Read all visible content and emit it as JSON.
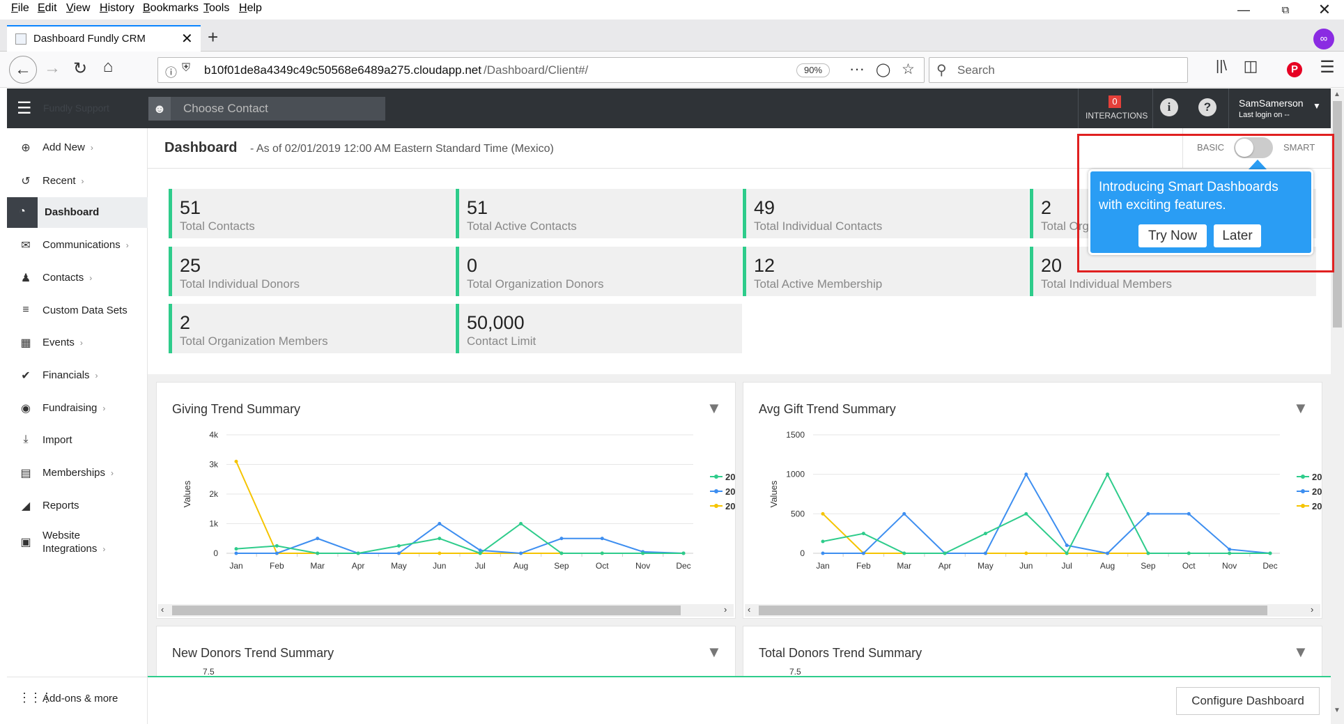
{
  "browser": {
    "menu": [
      "File",
      "Edit",
      "View",
      "History",
      "Bookmarks",
      "Tools",
      "Help"
    ],
    "tab_title": "Dashboard Fundly CRM",
    "url_host": "b10f01de8a4349c49c50568e6489a275.cloudapp.net",
    "url_path": "/Dashboard/Client#/",
    "zoom": "90%",
    "search_placeholder": "Search"
  },
  "header": {
    "brand": "Fundly Support",
    "contact_placeholder": "Choose Contact",
    "interactions_count": "0",
    "interactions_label": "INTERACTIONS",
    "user_name": "SamSamerson",
    "last_login": "Last login on --"
  },
  "sidebar": {
    "items": [
      {
        "label": "Add New",
        "icon": "plus-circle-icon",
        "chevron": true
      },
      {
        "label": "Recent",
        "icon": "history-icon",
        "chevron": true
      },
      {
        "label": "Dashboard",
        "icon": "dashboard-icon",
        "chevron": false,
        "active": true
      },
      {
        "label": "Communications",
        "icon": "envelope-icon",
        "chevron": true
      },
      {
        "label": "Contacts",
        "icon": "user-icon",
        "chevron": true
      },
      {
        "label": "Custom Data Sets",
        "icon": "layers-icon",
        "chevron": false
      },
      {
        "label": "Events",
        "icon": "calendar-icon",
        "chevron": true
      },
      {
        "label": "Financials",
        "icon": "tag-icon",
        "chevron": true
      },
      {
        "label": "Fundraising",
        "icon": "money-bag-icon",
        "chevron": true
      },
      {
        "label": "Import",
        "icon": "download-icon",
        "chevron": false
      },
      {
        "label": "Memberships",
        "icon": "id-card-icon",
        "chevron": true
      },
      {
        "label": "Reports",
        "icon": "chart-icon",
        "chevron": false
      },
      {
        "label": "Website",
        "label2": "Integrations",
        "icon": "website-icon",
        "chevron": true
      }
    ],
    "addons": "Add-ons & more"
  },
  "dashboard": {
    "title": "Dashboard",
    "subtitle": "- As of 02/01/2019 12:00 AM Eastern Standard Time (Mexico)",
    "toggle_basic": "BASIC",
    "toggle_smart": "SMART",
    "kpis": [
      {
        "value": "51",
        "label": "Total Contacts"
      },
      {
        "value": "51",
        "label": "Total Active Contacts"
      },
      {
        "value": "49",
        "label": "Total Individual Contacts"
      },
      {
        "value": "2",
        "label": "Total Organization Contacts"
      },
      {
        "value": "25",
        "label": "Total Individual Donors"
      },
      {
        "value": "0",
        "label": "Total Organization Donors"
      },
      {
        "value": "12",
        "label": "Total Active Membership"
      },
      {
        "value": "20",
        "label": "Total Individual Members"
      },
      {
        "value": "2",
        "label": "Total Organization Members"
      },
      {
        "value": "50,000",
        "label": "Contact Limit"
      }
    ],
    "configure": "Configure Dashboard"
  },
  "popup": {
    "line1": "Introducing Smart Dashboards",
    "line2": "with exciting features.",
    "try": "Try Now",
    "later": "Later"
  },
  "colors": {
    "green": "#2ecc8b",
    "blue": "#3d8ef0",
    "yellow": "#f5c400",
    "accent": "#2a9df4"
  },
  "chart_data": [
    {
      "type": "line",
      "title": "Giving Trend Summary",
      "ylabel": "Values",
      "categories": [
        "Jan",
        "Feb",
        "Mar",
        "Apr",
        "May",
        "Jun",
        "Jul",
        "Aug",
        "Sep",
        "Oct",
        "Nov",
        "Dec"
      ],
      "yticks": [
        "0",
        "1k",
        "2k",
        "3k",
        "4k"
      ],
      "ylim": [
        0,
        4000
      ],
      "legend": [
        "20",
        "20",
        "20"
      ],
      "series": [
        {
          "color": "#2ecc8b",
          "values": [
            150,
            250,
            0,
            0,
            250,
            500,
            0,
            1000,
            0,
            0,
            0,
            0
          ]
        },
        {
          "color": "#3d8ef0",
          "values": [
            0,
            0,
            500,
            0,
            0,
            1000,
            100,
            0,
            500,
            500,
            50,
            0
          ]
        },
        {
          "color": "#f5c400",
          "values": [
            3100,
            0,
            0,
            0,
            0,
            0,
            0,
            0,
            0,
            0,
            0,
            0
          ]
        }
      ]
    },
    {
      "type": "line",
      "title": "Avg Gift Trend Summary",
      "ylabel": "Values",
      "categories": [
        "Jan",
        "Feb",
        "Mar",
        "Apr",
        "May",
        "Jun",
        "Jul",
        "Aug",
        "Sep",
        "Oct",
        "Nov",
        "Dec"
      ],
      "yticks": [
        "0",
        "500",
        "1000",
        "1500"
      ],
      "ylim": [
        0,
        1500
      ],
      "legend": [
        "20",
        "20",
        "20"
      ],
      "series": [
        {
          "color": "#2ecc8b",
          "values": [
            150,
            250,
            0,
            0,
            250,
            500,
            0,
            1000,
            0,
            0,
            0,
            0
          ]
        },
        {
          "color": "#3d8ef0",
          "values": [
            0,
            0,
            500,
            0,
            0,
            1000,
            100,
            0,
            500,
            500,
            50,
            0
          ]
        },
        {
          "color": "#f5c400",
          "values": [
            500,
            0,
            0,
            0,
            0,
            0,
            0,
            0,
            0,
            0,
            0,
            0
          ]
        }
      ]
    },
    {
      "type": "line",
      "title": "New Donors Trend Summary",
      "yticks": [
        "7.5"
      ]
    },
    {
      "type": "line",
      "title": "Total Donors Trend Summary",
      "yticks": [
        "7.5"
      ]
    }
  ]
}
